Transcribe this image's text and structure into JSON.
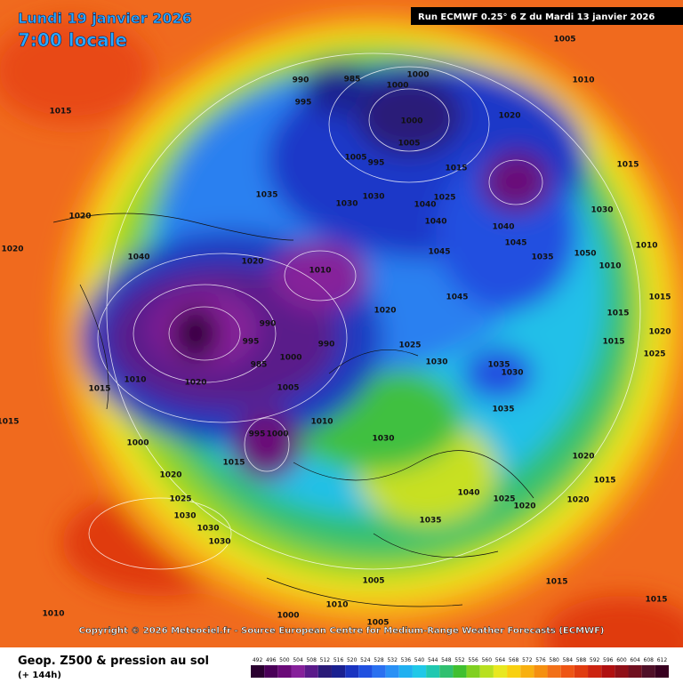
{
  "header": {
    "date": "Lundi 19 janvier 2026",
    "time": "7:00 locale",
    "run": "Run ECMWF 0.25° 6 Z du Mardi 13 janvier 2026"
  },
  "copyright": "Copyright © 2026 Meteociel.fr - Source European Centre for Medium-Range Weather Forecasts (ECMWF)",
  "footer": {
    "title": "Geop. Z500 & pression au sol",
    "lead": "(+ 144h)"
  },
  "isobar_labels": [
    1015,
    990,
    985,
    1000,
    1000,
    995,
    1000,
    1005,
    1005,
    995,
    1015,
    1020,
    1010,
    1005,
    1015,
    1030,
    1030,
    1040,
    1025,
    1040,
    1045,
    1040,
    1045,
    1030,
    1050,
    1010,
    1010,
    1020,
    1010,
    1035,
    1040,
    1020,
    1020,
    1045,
    1020,
    990,
    990,
    995,
    985,
    1000,
    1025,
    1030,
    1035,
    1030,
    1015,
    1010,
    1020,
    1005,
    1010,
    995,
    1000,
    1015,
    1000,
    1030,
    1035,
    1040,
    1025,
    1020,
    1035,
    1020,
    1025,
    1030,
    1030,
    1030,
    1020,
    1020,
    1015,
    1015,
    1005,
    1010,
    1000,
    1005,
    1015,
    1015,
    1020,
    1025,
    1015,
    1015,
    1010,
    1015,
    1035
  ],
  "colorbar": {
    "values": [
      492,
      496,
      500,
      504,
      508,
      512,
      516,
      520,
      524,
      528,
      532,
      536,
      540,
      544,
      548,
      552,
      556,
      560,
      564,
      568,
      572,
      576,
      580,
      584,
      588,
      592,
      596,
      600,
      604,
      608,
      612
    ],
    "colors": [
      "#2a0030",
      "#4a0058",
      "#6a0a78",
      "#86209a",
      "#5a1a8a",
      "#2a1a78",
      "#1a2090",
      "#1a34c0",
      "#2050e0",
      "#2a70f0",
      "#2a90f5",
      "#20b0f0",
      "#20c8e8",
      "#20c8b0",
      "#30c070",
      "#40c030",
      "#80d020",
      "#b8e020",
      "#e8e820",
      "#f8d010",
      "#f8b010",
      "#f59010",
      "#f27018",
      "#ee5514",
      "#e03c10",
      "#cc2410",
      "#b01010",
      "#901018",
      "#701020",
      "#501028",
      "#380020"
    ]
  }
}
